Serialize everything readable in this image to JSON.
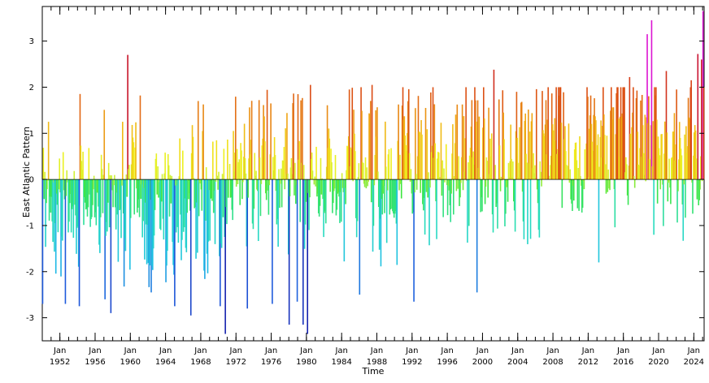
{
  "chart_data": {
    "type": "bar",
    "xlabel": "Time",
    "ylabel": "East Atlantic Pattern",
    "x_range": [
      1950.0,
      2025.17
    ],
    "ylim": [
      -3.5,
      3.75
    ],
    "y_ticks": [
      -3,
      -2,
      -1,
      0,
      1,
      2,
      3
    ],
    "x_tick_month": "Jan",
    "x_ticks_labeled": [
      1952,
      1956,
      1960,
      1964,
      1968,
      1972,
      1976,
      1980,
      1984,
      1988,
      1992,
      1996,
      2000,
      2004,
      2008,
      2012,
      2016,
      2020,
      2024
    ],
    "x_minor_ticks_yearly": true,
    "grid": false,
    "legend": "none",
    "color_scale": "rainbow: negative blue to cyan to green, positive yellow to orange to red to magenta",
    "resolution": "monthly",
    "notable_values": [
      {
        "date": "1950-01",
        "value": -2.7
      },
      {
        "date": "1950-09",
        "value": 1.25
      },
      {
        "date": "1952-08",
        "value": -2.7
      },
      {
        "date": "1954-03",
        "value": -2.75
      },
      {
        "date": "1957-02",
        "value": -2.6
      },
      {
        "date": "1957-10",
        "value": -2.9
      },
      {
        "date": "1959-02",
        "value": 1.25
      },
      {
        "date": "1959-09",
        "value": 2.7
      },
      {
        "date": "1961-02",
        "value": 1.82
      },
      {
        "date": "1962-05",
        "value": -2.45
      },
      {
        "date": "1965-01",
        "value": -2.75
      },
      {
        "date": "1966-11",
        "value": -2.95
      },
      {
        "date": "1967-09",
        "value": 1.7
      },
      {
        "date": "1970-03",
        "value": -2.75
      },
      {
        "date": "1970-10",
        "value": -3.35
      },
      {
        "date": "1973-04",
        "value": -2.8
      },
      {
        "date": "1974-08",
        "value": 1.72
      },
      {
        "date": "1976-02",
        "value": -2.7
      },
      {
        "date": "1978-01",
        "value": -3.15
      },
      {
        "date": "1978-12",
        "value": -2.65
      },
      {
        "date": "1979-08",
        "value": -3.15
      },
      {
        "date": "1980-02",
        "value": -3.35
      },
      {
        "date": "1980-06",
        "value": 2.05
      },
      {
        "date": "1984-11",
        "value": 1.95
      },
      {
        "date": "1986-01",
        "value": -2.5
      },
      {
        "date": "1987-06",
        "value": 2.05
      },
      {
        "date": "1992-03",
        "value": -2.65
      },
      {
        "date": "1993-07",
        "value": 1.55
      },
      {
        "date": "1998-10",
        "value": 1.72
      },
      {
        "date": "1999-05",
        "value": -2.45
      },
      {
        "date": "2001-04",
        "value": 2.38
      },
      {
        "date": "2007-03",
        "value": 1.72
      },
      {
        "date": "2012-04",
        "value": 1.82
      },
      {
        "date": "2013-03",
        "value": -1.8
      },
      {
        "date": "2016-09",
        "value": 2.22
      },
      {
        "date": "2018-09",
        "value": 3.15
      },
      {
        "date": "2019-03",
        "value": 3.45
      },
      {
        "date": "2019-06",
        "value": -1.2
      },
      {
        "date": "2020-11",
        "value": 2.35
      },
      {
        "date": "2022-01",
        "value": 1.95
      },
      {
        "date": "2023-09",
        "value": 2.15
      },
      {
        "date": "2024-06",
        "value": 2.72
      },
      {
        "date": "2024-11",
        "value": 2.6
      },
      {
        "date": "2025-01",
        "value": 3.65
      },
      {
        "date": "2025-03",
        "value": 2.7
      }
    ]
  }
}
